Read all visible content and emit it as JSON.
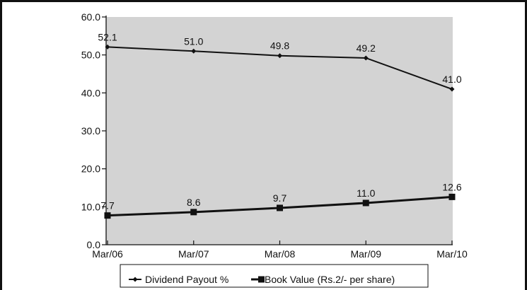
{
  "chart_data": {
    "type": "line",
    "categories": [
      "Mar/06",
      "Mar/07",
      "Mar/08",
      "Mar/09",
      "Mar/10"
    ],
    "series": [
      {
        "name": "Dividend Payout %",
        "values": [
          52.1,
          51.0,
          49.8,
          49.2,
          41.0
        ],
        "labels": [
          "52.1",
          "51.0",
          "49.8",
          "49.2",
          "41.0"
        ],
        "marker": "diamond"
      },
      {
        "name": "Book Value (Rs.2/- per share)",
        "values": [
          7.7,
          8.6,
          9.7,
          11.0,
          12.6
        ],
        "labels": [
          "7.7",
          "8.6",
          "9.7",
          "11.0",
          "12.6"
        ],
        "marker": "square"
      }
    ],
    "yticks": [
      "0.0",
      "10.0",
      "20.0",
      "30.0",
      "40.0",
      "50.0",
      "60.0"
    ],
    "ylim": [
      0,
      60
    ],
    "grid": false,
    "legend_position": "bottom",
    "colors": {
      "plot_background": "#d3d3d3",
      "line": "#111111",
      "frame": "#111111"
    }
  }
}
